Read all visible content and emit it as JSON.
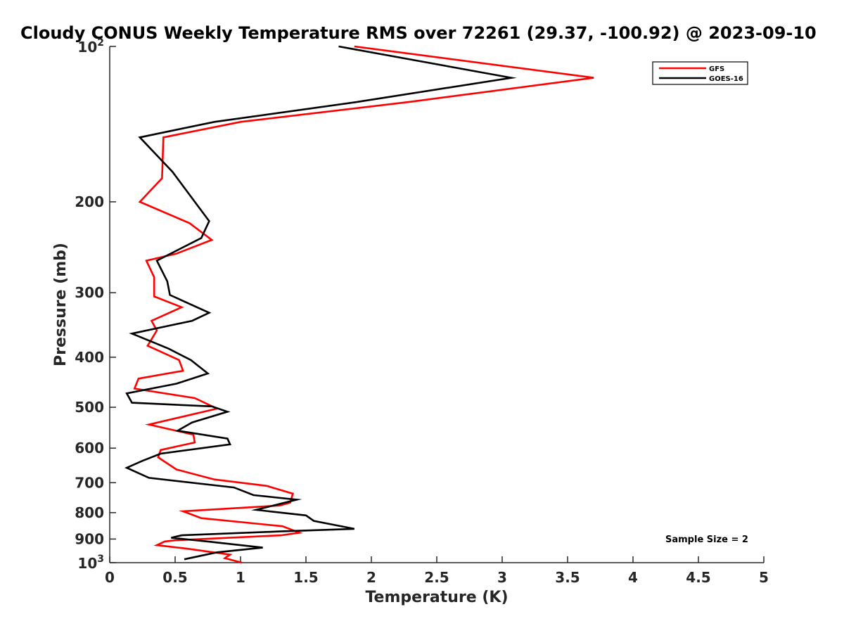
{
  "chart_data": {
    "type": "line",
    "title": "Cloudy CONUS Weekly Temperature RMS over 72261 (29.37, -100.92) @ 2023-09-10",
    "xlabel": "Temperature (K)",
    "ylabel": "Pressure (mb)",
    "xlim": [
      0,
      5
    ],
    "ylim": [
      100,
      1000
    ],
    "yscale": "log",
    "y_reversed": true,
    "x_ticks": [
      0,
      0.5,
      1,
      1.5,
      2,
      2.5,
      3,
      3.5,
      4,
      4.5,
      5
    ],
    "x_tick_labels": [
      "0",
      "0.5",
      "1",
      "1.5",
      "2",
      "2.5",
      "3",
      "3.5",
      "4",
      "4.5",
      "5"
    ],
    "y_ticks": [
      200,
      300,
      400,
      500,
      600,
      700,
      800,
      900
    ],
    "y_tick_labels": [
      "200",
      "300",
      "400",
      "500",
      "600",
      "700",
      "800",
      "900"
    ],
    "y_edge_labels": [
      {
        "value": 100,
        "base": "10",
        "exp": "2"
      },
      {
        "value": 1000,
        "base": "10",
        "exp": "3"
      }
    ],
    "grid": false,
    "legend_position": "top-right",
    "annotation": "Sample Size = 2",
    "series": [
      {
        "name": "GFS",
        "color": "#ff0000",
        "points": [
          [
            1.87,
            100
          ],
          [
            3.7,
            115
          ],
          [
            2.3,
            128
          ],
          [
            1.0,
            140
          ],
          [
            0.41,
            150
          ],
          [
            0.4,
            180
          ],
          [
            0.23,
            200
          ],
          [
            0.61,
            220
          ],
          [
            0.78,
            237
          ],
          [
            0.51,
            252
          ],
          [
            0.28,
            260
          ],
          [
            0.34,
            280
          ],
          [
            0.34,
            305
          ],
          [
            0.55,
            320
          ],
          [
            0.32,
            340
          ],
          [
            0.36,
            355
          ],
          [
            0.29,
            380
          ],
          [
            0.53,
            405
          ],
          [
            0.56,
            425
          ],
          [
            0.22,
            440
          ],
          [
            0.19,
            460
          ],
          [
            0.65,
            480
          ],
          [
            0.82,
            503
          ],
          [
            0.3,
            540
          ],
          [
            0.64,
            565
          ],
          [
            0.65,
            585
          ],
          [
            0.39,
            605
          ],
          [
            0.37,
            625
          ],
          [
            0.51,
            660
          ],
          [
            0.8,
            690
          ],
          [
            1.2,
            710
          ],
          [
            1.4,
            735
          ],
          [
            1.38,
            765
          ],
          [
            1.3,
            775
          ],
          [
            0.56,
            795
          ],
          [
            0.7,
            820
          ],
          [
            1.32,
            850
          ],
          [
            1.45,
            875
          ],
          [
            1.31,
            885
          ],
          [
            0.5,
            905
          ],
          [
            0.42,
            910
          ],
          [
            0.36,
            925
          ],
          [
            0.6,
            940
          ],
          [
            0.92,
            965
          ],
          [
            0.88,
            980
          ],
          [
            1.01,
            1000
          ]
        ]
      },
      {
        "name": "GOES-16",
        "color": "#000000",
        "points": [
          [
            1.75,
            100
          ],
          [
            3.07,
            115
          ],
          [
            1.9,
            128
          ],
          [
            0.8,
            140
          ],
          [
            0.23,
            150
          ],
          [
            0.48,
            175
          ],
          [
            0.76,
            218
          ],
          [
            0.7,
            235
          ],
          [
            0.36,
            260
          ],
          [
            0.44,
            285
          ],
          [
            0.46,
            303
          ],
          [
            0.76,
            328
          ],
          [
            0.63,
            340
          ],
          [
            0.17,
            360
          ],
          [
            0.45,
            385
          ],
          [
            0.62,
            405
          ],
          [
            0.75,
            430
          ],
          [
            0.51,
            450
          ],
          [
            0.13,
            470
          ],
          [
            0.17,
            490
          ],
          [
            0.78,
            498
          ],
          [
            0.9,
            510
          ],
          [
            0.63,
            535
          ],
          [
            0.52,
            555
          ],
          [
            0.9,
            575
          ],
          [
            0.92,
            590
          ],
          [
            0.39,
            615
          ],
          [
            0.25,
            635
          ],
          [
            0.13,
            655
          ],
          [
            0.3,
            685
          ],
          [
            0.95,
            715
          ],
          [
            1.1,
            740
          ],
          [
            1.43,
            755
          ],
          [
            1.12,
            790
          ],
          [
            1.5,
            810
          ],
          [
            1.56,
            830
          ],
          [
            1.87,
            860
          ],
          [
            1.3,
            870
          ],
          [
            0.55,
            885
          ],
          [
            0.47,
            895
          ],
          [
            0.75,
            910
          ],
          [
            1.17,
            935
          ],
          [
            0.82,
            955
          ],
          [
            0.57,
            985
          ]
        ]
      }
    ]
  }
}
